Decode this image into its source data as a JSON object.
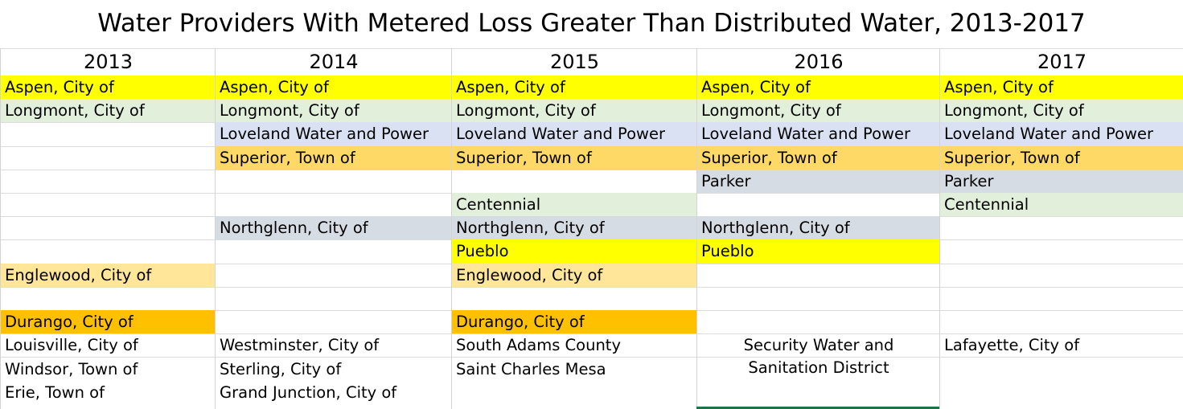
{
  "title": "Water Providers With Metered Loss Greater Than Distributed Water, 2013-2017",
  "colors": {
    "yellow": "#ffff00",
    "light_green": "#e2efda",
    "light_blue": "#d9e1f2",
    "orange_light": "#ffd966",
    "gray_blue": "#d6dce4",
    "green2": "#e2efda",
    "peach": "#ffe699",
    "orange": "#ffc000"
  },
  "columns": [
    {
      "year": "2013",
      "cells": [
        {
          "row": 0,
          "text": "Aspen, City of",
          "color": "#ffff00"
        },
        {
          "row": 1,
          "text": "Longmont, City of",
          "color": "#e2efda"
        },
        {
          "row": 8,
          "text": "Englewood, City of",
          "color": "#ffe699"
        },
        {
          "row": 10,
          "text": "Durango, City of",
          "color": "#ffc000"
        }
      ],
      "bottom": [
        "Louisville, City of",
        "Windsor, Town of",
        "Erie, Town of"
      ]
    },
    {
      "year": "2014",
      "cells": [
        {
          "row": 0,
          "text": "Aspen, City of",
          "color": "#ffff00"
        },
        {
          "row": 1,
          "text": "Longmont, City of",
          "color": "#e2efda"
        },
        {
          "row": 2,
          "text": "Loveland Water and Power",
          "color": "#d9e1f2"
        },
        {
          "row": 3,
          "text": "Superior, Town of",
          "color": "#ffd966"
        },
        {
          "row": 6,
          "text": "Northglenn, City of",
          "color": "#d6dce4"
        }
      ],
      "bottom": [
        "Westminster, City of",
        "Sterling, City of",
        "Grand Junction, City of"
      ]
    },
    {
      "year": "2015",
      "cells": [
        {
          "row": 0,
          "text": "Aspen, City of",
          "color": "#ffff00"
        },
        {
          "row": 1,
          "text": "Longmont, City of",
          "color": "#e2efda"
        },
        {
          "row": 2,
          "text": "Loveland Water and Power",
          "color": "#d9e1f2"
        },
        {
          "row": 3,
          "text": "Superior, Town of",
          "color": "#ffd966"
        },
        {
          "row": 5,
          "text": "Centennial",
          "color": "#e2efda"
        },
        {
          "row": 6,
          "text": "Northglenn, City of",
          "color": "#d6dce4"
        },
        {
          "row": 7,
          "text": "Pueblo",
          "color": "#ffff00"
        },
        {
          "row": 8,
          "text": "Englewood, City of",
          "color": "#ffe699"
        },
        {
          "row": 10,
          "text": "Durango, City of",
          "color": "#ffc000"
        }
      ],
      "bottom": [
        "South Adams County",
        "Saint Charles Mesa"
      ]
    },
    {
      "year": "2016",
      "cells": [
        {
          "row": 0,
          "text": "Aspen, City of",
          "color": "#ffff00"
        },
        {
          "row": 1,
          "text": "Longmont, City of",
          "color": "#e2efda"
        },
        {
          "row": 2,
          "text": "Loveland Water and Power",
          "color": "#d9e1f2"
        },
        {
          "row": 3,
          "text": "Superior, Town of",
          "color": "#ffd966"
        },
        {
          "row": 4,
          "text": "Parker",
          "color": "#d6dce4"
        },
        {
          "row": 6,
          "text": "Northglenn, City of",
          "color": "#d6dce4"
        },
        {
          "row": 7,
          "text": "Pueblo",
          "color": "#ffff00"
        }
      ],
      "bottom_centered": [
        "Security Water and",
        "Sanitation District"
      ]
    },
    {
      "year": "2017",
      "cells": [
        {
          "row": 0,
          "text": "Aspen, City of",
          "color": "#ffff00"
        },
        {
          "row": 1,
          "text": "Longmont, City of",
          "color": "#e2efda"
        },
        {
          "row": 2,
          "text": "Loveland Water and Power",
          "color": "#d9e1f2"
        },
        {
          "row": 3,
          "text": "Superior, Town of",
          "color": "#ffd966"
        },
        {
          "row": 4,
          "text": "Parker",
          "color": "#d6dce4"
        },
        {
          "row": 5,
          "text": "Centennial",
          "color": "#e2efda"
        }
      ],
      "bottom": [
        "Lafayette, City of"
      ]
    }
  ]
}
